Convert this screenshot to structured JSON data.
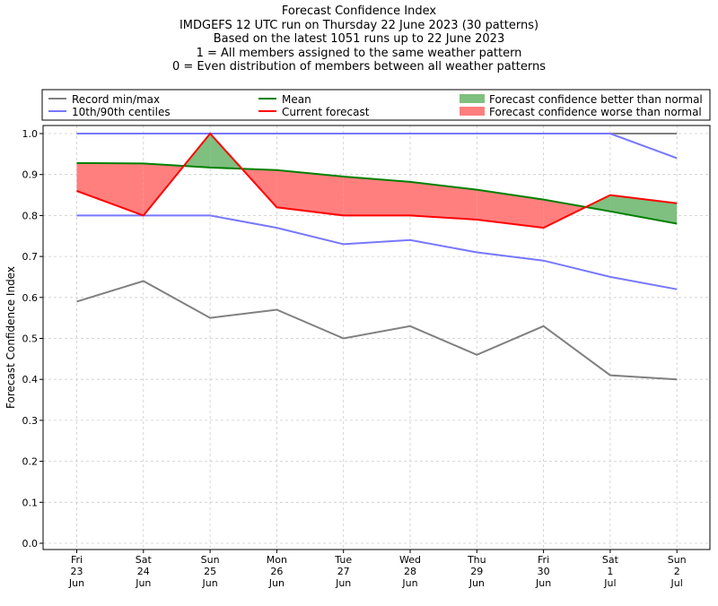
{
  "chart_data": {
    "type": "line",
    "title_lines": [
      "Forecast Confidence Index",
      "IMDGEFS 12 UTC run on Thursday 22 June 2023 (30 patterns)",
      "Based on the latest 1051 runs up to 22 June 2023",
      "1 = All members assigned to the same weather pattern",
      "0 = Even distribution of members between all weather patterns"
    ],
    "ylabel": "Forecast Confidence Index",
    "xlabel": "",
    "ylim": [
      0,
      1.0
    ],
    "yticks": [
      "0.0",
      "0.1",
      "0.2",
      "0.3",
      "0.4",
      "0.5",
      "0.6",
      "0.7",
      "0.8",
      "0.9",
      "1.0"
    ],
    "grid": true,
    "legend_position": "top",
    "categories": [
      [
        "Fri",
        "23",
        "Jun"
      ],
      [
        "Sat",
        "24",
        "Jun"
      ],
      [
        "Sun",
        "25",
        "Jun"
      ],
      [
        "Mon",
        "26",
        "Jun"
      ],
      [
        "Tue",
        "27",
        "Jun"
      ],
      [
        "Wed",
        "28",
        "Jun"
      ],
      [
        "Thu",
        "29",
        "Jun"
      ],
      [
        "Fri",
        "30",
        "Jun"
      ],
      [
        "Sat",
        "1",
        "Jul"
      ],
      [
        "Sun",
        "2",
        "Jul"
      ]
    ],
    "series": {
      "record_max": [
        1.0,
        1.0,
        1.0,
        1.0,
        1.0,
        1.0,
        1.0,
        1.0,
        1.0,
        1.0
      ],
      "record_min": [
        0.59,
        0.64,
        0.55,
        0.57,
        0.5,
        0.53,
        0.46,
        0.53,
        0.41,
        0.4
      ],
      "centile_90": [
        1.0,
        1.0,
        1.0,
        1.0,
        1.0,
        1.0,
        1.0,
        1.0,
        1.0,
        0.94
      ],
      "centile_10": [
        0.8,
        0.8,
        0.8,
        0.77,
        0.73,
        0.74,
        0.71,
        0.69,
        0.65,
        0.62
      ],
      "mean": [
        0.928,
        0.927,
        0.917,
        0.911,
        0.895,
        0.882,
        0.863,
        0.839,
        0.81,
        0.78
      ],
      "current": [
        0.86,
        0.8,
        1.0,
        0.82,
        0.8,
        0.8,
        0.79,
        0.77,
        0.85,
        0.83
      ]
    },
    "legend": [
      {
        "label": "Record min/max",
        "kind": "line",
        "color": "#808080"
      },
      {
        "label": "10th/90th centiles",
        "kind": "line",
        "color": "#7777ff"
      },
      {
        "label": "Mean",
        "kind": "line",
        "color": "#008000"
      },
      {
        "label": "Current forecast",
        "kind": "line",
        "color": "#ff0000"
      },
      {
        "label": "Forecast confidence better than normal",
        "kind": "patch",
        "color": "#7fbf7f"
      },
      {
        "label": "Forecast confidence worse than normal",
        "kind": "patch",
        "color": "#ff7f7f"
      }
    ],
    "colors": {
      "record": "#808080",
      "centile": "#7777ff",
      "max_line": "#2222dd",
      "mean": "#008000",
      "current": "#ff0000",
      "better_fill": "#7fbf7f",
      "worse_fill": "#ff7f7f"
    }
  }
}
